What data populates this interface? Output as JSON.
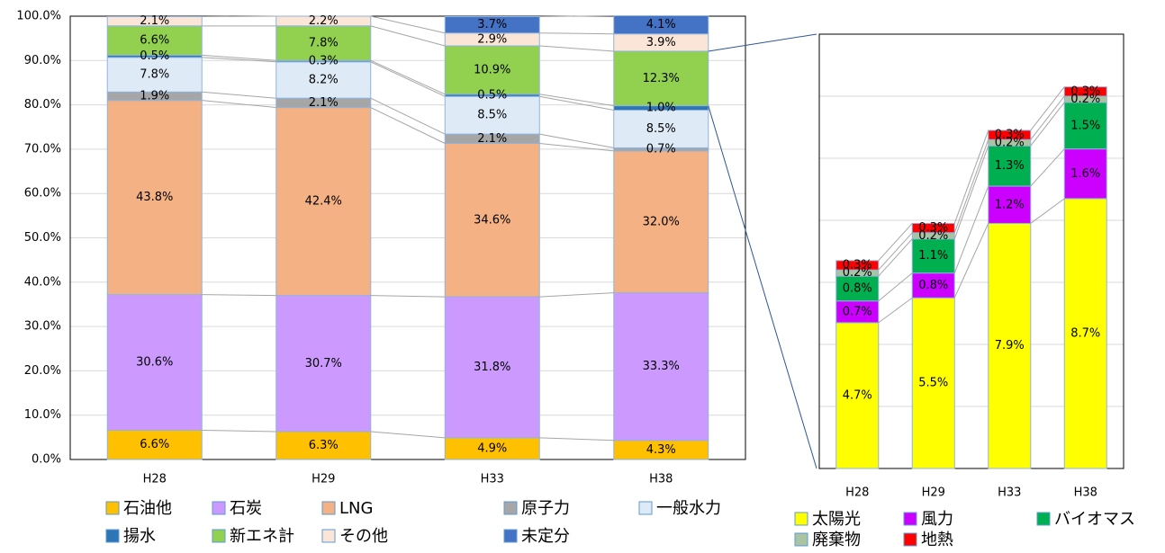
{
  "chart_data": [
    {
      "type": "stacked_bar",
      "categories": [
        "H28",
        "H29",
        "H33",
        "H38"
      ],
      "ylim": [
        0,
        100
      ],
      "yticks": [
        {
          "value": 0,
          "label": "0.0%"
        },
        {
          "value": 10,
          "label": "10.0%"
        },
        {
          "value": 20,
          "label": "20.0%"
        },
        {
          "value": 30,
          "label": "30.0%"
        },
        {
          "value": 40,
          "label": "40.0%"
        },
        {
          "value": 50,
          "label": "50.0%"
        },
        {
          "value": 60,
          "label": "60.0%"
        },
        {
          "value": 70,
          "label": "70.0%"
        },
        {
          "value": 80,
          "label": "80.0%"
        },
        {
          "value": 90,
          "label": "90.0%"
        },
        {
          "value": 100,
          "label": "100.0%"
        }
      ],
      "grid": true,
      "series": [
        {
          "name": "石油他",
          "color": "#ffc000",
          "values": [
            6.6,
            6.3,
            4.9,
            4.3
          ],
          "value_labels": [
            "6.6%",
            "6.3%",
            "4.9%",
            "4.3%"
          ]
        },
        {
          "name": "石炭",
          "color": "#cc99ff",
          "values": [
            30.6,
            30.7,
            31.8,
            33.3
          ],
          "value_labels": [
            "30.6%",
            "30.7%",
            "31.8%",
            "33.3%"
          ]
        },
        {
          "name": "LNG",
          "color": "#f4b183",
          "values": [
            43.8,
            42.4,
            34.6,
            32.0
          ],
          "value_labels": [
            "43.8%",
            "42.4%",
            "34.6%",
            "32.0%"
          ]
        },
        {
          "name": "原子力",
          "color": "#a6a6a6",
          "values": [
            1.9,
            2.1,
            2.1,
            0.7
          ],
          "value_labels": [
            "1.9%",
            "2.1%",
            "2.1%",
            "0.7%"
          ]
        },
        {
          "name": "一般水力",
          "color": "#deebf7",
          "values": [
            7.8,
            8.2,
            8.5,
            8.5
          ],
          "value_labels": [
            "7.8%",
            "8.2%",
            "8.5%",
            "8.5%"
          ]
        },
        {
          "name": "揚水",
          "color": "#2e75b6",
          "values": [
            0.5,
            0.3,
            0.5,
            1.0
          ],
          "value_labels": [
            "0.5%",
            "0.3%",
            "0.5%",
            "1.0%"
          ]
        },
        {
          "name": "新エネ計",
          "color": "#92d050",
          "values": [
            6.6,
            7.8,
            10.9,
            12.3
          ],
          "value_labels": [
            "6.6%",
            "7.8%",
            "10.9%",
            "12.3%"
          ]
        },
        {
          "name": "その他",
          "color": "#fbe5d6",
          "values": [
            2.1,
            2.2,
            2.9,
            3.9
          ],
          "value_labels": [
            "2.1%",
            "2.2%",
            "2.9%",
            "3.9%"
          ]
        },
        {
          "name": "未定分",
          "color": "#4472c4",
          "values": [
            null,
            null,
            3.7,
            4.1
          ],
          "value_labels": [
            null,
            null,
            "3.7%",
            "4.1%"
          ]
        }
      ]
    },
    {
      "type": "stacked_bar",
      "categories": [
        "H28",
        "H29",
        "H33",
        "H38"
      ],
      "ylim": [
        0,
        14
      ],
      "yticks": [
        0,
        2,
        4,
        6,
        8,
        10,
        12,
        14
      ],
      "grid": true,
      "series": [
        {
          "name": "太陽光",
          "color": "#ffff00",
          "values": [
            4.7,
            5.5,
            7.9,
            8.7
          ],
          "value_labels": [
            "4.7%",
            "5.5%",
            "7.9%",
            "8.7%"
          ]
        },
        {
          "name": "風力",
          "color": "#cc00ff",
          "values": [
            0.7,
            0.8,
            1.2,
            1.6
          ],
          "value_labels": [
            "0.7%",
            "0.8%",
            "1.2%",
            "1.6%"
          ]
        },
        {
          "name": "バイオマス",
          "color": "#00b050",
          "values": [
            0.8,
            1.1,
            1.3,
            1.5
          ],
          "value_labels": [
            "0.8%",
            "1.1%",
            "1.3%",
            "1.5%"
          ]
        },
        {
          "name": "廃棄物",
          "color": "#a9c4a0",
          "values": [
            0.2,
            0.2,
            0.2,
            0.2
          ],
          "value_labels": [
            "0.2%",
            "0.2%",
            "0.2%",
            "0.2%"
          ]
        },
        {
          "name": "地熱",
          "color": "#ff0000",
          "values": [
            0.3,
            0.3,
            0.3,
            0.3
          ],
          "value_labels": [
            "0.3%",
            "0.3%",
            "0.3%",
            "0.3%"
          ]
        }
      ]
    }
  ]
}
